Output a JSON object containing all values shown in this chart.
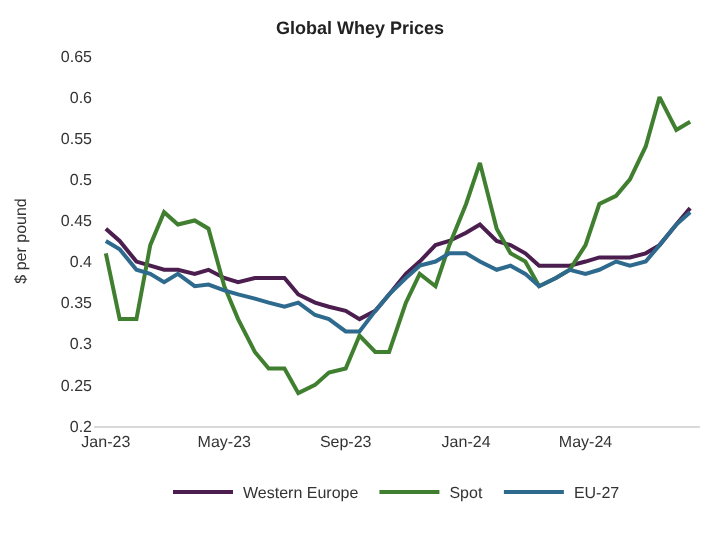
{
  "chart_data": {
    "type": "line",
    "title": "Global Whey Prices",
    "ylabel": "$ per pound",
    "x": [
      "2023-01-01",
      "2023-01-15",
      "2023-02-01",
      "2023-02-15",
      "2023-03-01",
      "2023-03-15",
      "2023-04-01",
      "2023-04-15",
      "2023-05-01",
      "2023-05-15",
      "2023-06-01",
      "2023-06-15",
      "2023-07-01",
      "2023-07-15",
      "2023-08-01",
      "2023-08-15",
      "2023-09-01",
      "2023-09-15",
      "2023-10-01",
      "2023-10-15",
      "2023-11-01",
      "2023-11-15",
      "2023-12-01",
      "2023-12-15",
      "2024-01-01",
      "2024-01-15",
      "2024-02-01",
      "2024-02-15",
      "2024-03-01",
      "2024-03-15",
      "2024-04-01",
      "2024-04-15",
      "2024-05-01",
      "2024-05-15",
      "2024-06-01",
      "2024-06-15",
      "2024-07-01",
      "2024-07-15",
      "2024-08-01",
      "2024-08-15"
    ],
    "series": [
      {
        "name": "Western Europe",
        "color": "#4b1e4f",
        "values": [
          0.44,
          0.425,
          0.4,
          0.395,
          0.39,
          0.39,
          0.385,
          0.39,
          0.38,
          0.375,
          0.38,
          0.38,
          0.38,
          0.36,
          0.35,
          0.345,
          0.34,
          0.33,
          0.34,
          0.36,
          0.385,
          0.4,
          0.42,
          0.425,
          0.435,
          0.445,
          0.425,
          0.42,
          0.41,
          0.395,
          0.395,
          0.395,
          0.4,
          0.405,
          0.405,
          0.405,
          0.41,
          0.42,
          0.445,
          0.465
        ]
      },
      {
        "name": "Spot",
        "color": "#3f7f2f",
        "values": [
          0.41,
          0.33,
          0.33,
          0.42,
          0.46,
          0.445,
          0.45,
          0.44,
          0.37,
          0.33,
          0.29,
          0.27,
          0.27,
          0.24,
          0.25,
          0.265,
          0.27,
          0.31,
          0.29,
          0.29,
          0.35,
          0.385,
          0.37,
          0.42,
          0.47,
          0.52,
          0.44,
          0.41,
          0.4,
          0.37,
          0.38,
          0.39,
          0.42,
          0.47,
          0.48,
          0.5,
          0.54,
          0.6,
          0.56,
          0.57
        ]
      },
      {
        "name": "EU-27",
        "color": "#2e6a8e",
        "values": [
          0.425,
          0.415,
          0.39,
          0.385,
          0.375,
          0.385,
          0.37,
          0.372,
          0.365,
          0.36,
          0.355,
          0.35,
          0.345,
          0.35,
          0.335,
          0.33,
          0.315,
          0.315,
          0.34,
          0.36,
          0.38,
          0.395,
          0.4,
          0.41,
          0.41,
          0.4,
          0.39,
          0.395,
          0.385,
          0.37,
          0.38,
          0.39,
          0.385,
          0.39,
          0.4,
          0.395,
          0.4,
          0.42,
          0.445,
          0.46
        ]
      }
    ],
    "xlim": [
      "2022-12-20",
      "2024-08-25"
    ],
    "xticks": [
      {
        "value": "2023-01-01",
        "label": "Jan-23"
      },
      {
        "value": "2023-05-01",
        "label": "May-23"
      },
      {
        "value": "2023-09-01",
        "label": "Sep-23"
      },
      {
        "value": "2024-01-01",
        "label": "Jan-24"
      },
      {
        "value": "2024-05-01",
        "label": "May-24"
      }
    ],
    "ylim": [
      0.2,
      0.65
    ],
    "yticks": [
      0.2,
      0.25,
      0.3,
      0.35,
      0.4,
      0.45,
      0.5,
      0.55,
      0.6,
      0.65
    ],
    "grid": false,
    "legend": "bottom",
    "marker": "none",
    "line_style": "solid"
  }
}
